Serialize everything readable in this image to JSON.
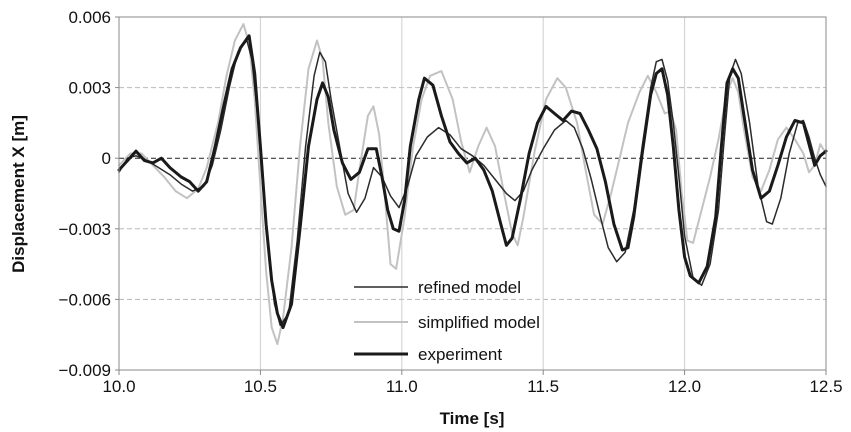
{
  "chart_data": {
    "type": "line",
    "title": "",
    "xlabel": "Time [s]",
    "ylabel": "Displacement X [m]",
    "xlim": [
      10.0,
      12.5
    ],
    "ylim": [
      -0.009,
      0.006
    ],
    "x_ticks": [
      10.0,
      10.5,
      11.0,
      11.5,
      12.0,
      12.5
    ],
    "x_tick_labels": [
      "10.0",
      "10.5",
      "11.0",
      "11.5",
      "12.0",
      "12.5"
    ],
    "y_ticks": [
      -0.009,
      -0.006,
      -0.003,
      0,
      0.003,
      0.006
    ],
    "y_tick_labels": [
      "−0.009",
      "−0.006",
      "−0.003",
      "0",
      "0.003",
      "0.006"
    ],
    "grid": {
      "horizontal": "dashed",
      "vertical": "solid"
    },
    "zero_line": "dashed-black",
    "legend_position": "bottom-center",
    "series": [
      {
        "name": "refined model",
        "color": "#2b2b2b",
        "line_width": 1.5,
        "points": [
          [
            10.0,
            -0.0006
          ],
          [
            10.03,
            0.0
          ],
          [
            10.06,
            0.0001
          ],
          [
            10.1,
            -0.0001
          ],
          [
            10.14,
            -0.0004
          ],
          [
            10.18,
            -0.0007
          ],
          [
            10.22,
            -0.0011
          ],
          [
            10.26,
            -0.0014
          ],
          [
            10.3,
            -0.0012
          ],
          [
            10.33,
            -0.0003
          ],
          [
            10.36,
            0.0012
          ],
          [
            10.39,
            0.003
          ],
          [
            10.42,
            0.0045
          ],
          [
            10.45,
            0.0051
          ],
          [
            10.47,
            0.0042
          ],
          [
            10.49,
            0.0018
          ],
          [
            10.51,
            -0.0014
          ],
          [
            10.53,
            -0.0042
          ],
          [
            10.55,
            -0.0062
          ],
          [
            10.57,
            -0.0071
          ],
          [
            10.6,
            -0.0066
          ],
          [
            10.63,
            -0.0035
          ],
          [
            10.66,
            0.0005
          ],
          [
            10.69,
            0.0035
          ],
          [
            10.71,
            0.0045
          ],
          [
            10.73,
            0.0041
          ],
          [
            10.75,
            0.0025
          ],
          [
            10.78,
            0.0005
          ],
          [
            10.81,
            -0.0015
          ],
          [
            10.84,
            -0.0023
          ],
          [
            10.87,
            -0.0017
          ],
          [
            10.9,
            -0.0004
          ],
          [
            10.93,
            -0.0008
          ],
          [
            10.96,
            -0.0016
          ],
          [
            10.99,
            -0.0021
          ],
          [
            11.02,
            -0.0012
          ],
          [
            11.05,
            0.0001
          ],
          [
            11.09,
            0.0009
          ],
          [
            11.13,
            0.0013
          ],
          [
            11.17,
            0.001
          ],
          [
            11.21,
            0.0004
          ],
          [
            11.25,
            0.0001
          ],
          [
            11.29,
            -0.0003
          ],
          [
            11.33,
            -0.0009
          ],
          [
            11.37,
            -0.0015
          ],
          [
            11.4,
            -0.0018
          ],
          [
            11.43,
            -0.0014
          ],
          [
            11.46,
            -0.0005
          ],
          [
            11.5,
            0.0004
          ],
          [
            11.54,
            0.0012
          ],
          [
            11.58,
            0.0016
          ],
          [
            11.61,
            0.0013
          ],
          [
            11.64,
            0.0004
          ],
          [
            11.67,
            -0.0009
          ],
          [
            11.7,
            -0.0024
          ],
          [
            11.73,
            -0.0038
          ],
          [
            11.76,
            -0.0044
          ],
          [
            11.79,
            -0.004
          ],
          [
            11.82,
            -0.0022
          ],
          [
            11.85,
            0.0005
          ],
          [
            11.88,
            0.003
          ],
          [
            11.9,
            0.0041
          ],
          [
            11.92,
            0.0042
          ],
          [
            11.94,
            0.0033
          ],
          [
            11.96,
            0.0015
          ],
          [
            11.98,
            -0.0008
          ],
          [
            12.0,
            -0.0033
          ],
          [
            12.03,
            -0.0051
          ],
          [
            12.06,
            -0.0054
          ],
          [
            12.09,
            -0.0045
          ],
          [
            12.12,
            -0.0022
          ],
          [
            12.14,
            0.0008
          ],
          [
            12.16,
            0.0035
          ],
          [
            12.18,
            0.0042
          ],
          [
            12.2,
            0.0036
          ],
          [
            12.23,
            0.0015
          ],
          [
            12.26,
            -0.0012
          ],
          [
            12.29,
            -0.0027
          ],
          [
            12.31,
            -0.0028
          ],
          [
            12.34,
            -0.0017
          ],
          [
            12.37,
            0.0002
          ],
          [
            12.4,
            0.0015
          ],
          [
            12.42,
            0.0016
          ],
          [
            12.44,
            0.0009
          ],
          [
            12.46,
            0.0
          ],
          [
            12.48,
            -0.0007
          ],
          [
            12.5,
            -0.0012
          ]
        ]
      },
      {
        "name": "simplified model",
        "color": "#c2c2c2",
        "line_width": 2,
        "points": [
          [
            10.0,
            -0.0003
          ],
          [
            10.04,
            0.0002
          ],
          [
            10.08,
            0.0002
          ],
          [
            10.12,
            -0.0003
          ],
          [
            10.16,
            -0.0008
          ],
          [
            10.2,
            -0.0014
          ],
          [
            10.24,
            -0.0017
          ],
          [
            10.28,
            -0.0013
          ],
          [
            10.31,
            -0.0004
          ],
          [
            10.35,
            0.0015
          ],
          [
            10.38,
            0.0035
          ],
          [
            10.41,
            0.005
          ],
          [
            10.44,
            0.0057
          ],
          [
            10.46,
            0.0049
          ],
          [
            10.48,
            0.0025
          ],
          [
            10.5,
            -0.0012
          ],
          [
            10.52,
            -0.0048
          ],
          [
            10.54,
            -0.0072
          ],
          [
            10.56,
            -0.0079
          ],
          [
            10.58,
            -0.0068
          ],
          [
            10.61,
            -0.0038
          ],
          [
            10.64,
            0.0005
          ],
          [
            10.67,
            0.0038
          ],
          [
            10.7,
            0.005
          ],
          [
            10.72,
            0.0042
          ],
          [
            10.74,
            0.0015
          ],
          [
            10.77,
            -0.0012
          ],
          [
            10.8,
            -0.0024
          ],
          [
            10.83,
            -0.0022
          ],
          [
            10.85,
            -0.0005
          ],
          [
            10.88,
            0.0018
          ],
          [
            10.9,
            0.0022
          ],
          [
            10.92,
            0.001
          ],
          [
            10.94,
            -0.0016
          ],
          [
            10.96,
            -0.0045
          ],
          [
            10.98,
            -0.0047
          ],
          [
            11.01,
            -0.0025
          ],
          [
            11.04,
            0.0005
          ],
          [
            11.07,
            0.0025
          ],
          [
            11.1,
            0.0035
          ],
          [
            11.14,
            0.0037
          ],
          [
            11.18,
            0.0025
          ],
          [
            11.21,
            0.0007
          ],
          [
            11.24,
            -0.0006
          ],
          [
            11.27,
            0.0005
          ],
          [
            11.3,
            0.0013
          ],
          [
            11.33,
            0.0005
          ],
          [
            11.36,
            -0.0014
          ],
          [
            11.39,
            -0.0032
          ],
          [
            11.41,
            -0.0037
          ],
          [
            11.43,
            -0.0025
          ],
          [
            11.47,
            0.0003
          ],
          [
            11.51,
            0.0025
          ],
          [
            11.55,
            0.0034
          ],
          [
            11.58,
            0.003
          ],
          [
            11.62,
            0.0015
          ],
          [
            11.65,
            -0.0005
          ],
          [
            11.68,
            -0.0024
          ],
          [
            11.71,
            -0.0028
          ],
          [
            11.74,
            -0.0015
          ],
          [
            11.77,
            0.0
          ],
          [
            11.8,
            0.0015
          ],
          [
            11.84,
            0.0028
          ],
          [
            11.87,
            0.0035
          ],
          [
            11.9,
            0.0028
          ],
          [
            11.93,
            0.0019
          ],
          [
            11.95,
            0.002
          ],
          [
            11.97,
            0.0012
          ],
          [
            11.99,
            -0.0015
          ],
          [
            12.01,
            -0.0035
          ],
          [
            12.03,
            -0.0036
          ],
          [
            12.06,
            -0.0022
          ],
          [
            12.09,
            -0.0008
          ],
          [
            12.12,
            0.0008
          ],
          [
            12.15,
            0.0028
          ],
          [
            12.17,
            0.0034
          ],
          [
            12.19,
            0.0028
          ],
          [
            12.21,
            0.0012
          ],
          [
            12.24,
            -0.0008
          ],
          [
            12.27,
            -0.0014
          ],
          [
            12.3,
            -0.0005
          ],
          [
            12.33,
            0.0008
          ],
          [
            12.36,
            0.0013
          ],
          [
            12.39,
            0.0008
          ],
          [
            12.42,
            0.0002
          ],
          [
            12.44,
            -0.0006
          ],
          [
            12.46,
            -0.0003
          ],
          [
            12.48,
            0.0006
          ],
          [
            12.5,
            0.0002
          ]
        ]
      },
      {
        "name": "experiment",
        "color": "#1a1a1a",
        "line_width": 3,
        "points": [
          [
            10.0,
            -0.0005
          ],
          [
            10.03,
            -0.0001
          ],
          [
            10.06,
            0.0003
          ],
          [
            10.09,
            -0.0001
          ],
          [
            10.12,
            -0.0002
          ],
          [
            10.15,
            0.0
          ],
          [
            10.18,
            -0.0004
          ],
          [
            10.22,
            -0.0008
          ],
          [
            10.25,
            -0.001
          ],
          [
            10.28,
            -0.0014
          ],
          [
            10.31,
            -0.001
          ],
          [
            10.34,
            0.0005
          ],
          [
            10.37,
            0.0022
          ],
          [
            10.4,
            0.0038
          ],
          [
            10.43,
            0.0047
          ],
          [
            10.46,
            0.0052
          ],
          [
            10.48,
            0.0036
          ],
          [
            10.5,
            0.0005
          ],
          [
            10.52,
            -0.0028
          ],
          [
            10.54,
            -0.0052
          ],
          [
            10.56,
            -0.0066
          ],
          [
            10.58,
            -0.0072
          ],
          [
            10.61,
            -0.0062
          ],
          [
            10.64,
            -0.003
          ],
          [
            10.67,
            0.0005
          ],
          [
            10.7,
            0.0025
          ],
          [
            10.72,
            0.0032
          ],
          [
            10.74,
            0.0026
          ],
          [
            10.76,
            0.0012
          ],
          [
            10.79,
            -0.0002
          ],
          [
            10.82,
            -0.0009
          ],
          [
            10.85,
            -0.0006
          ],
          [
            10.88,
            0.0004
          ],
          [
            10.91,
            0.0004
          ],
          [
            10.93,
            -0.0008
          ],
          [
            10.95,
            -0.0022
          ],
          [
            10.97,
            -0.003
          ],
          [
            10.99,
            -0.0031
          ],
          [
            11.01,
            -0.0018
          ],
          [
            11.03,
            0.0005
          ],
          [
            11.06,
            0.0025
          ],
          [
            11.08,
            0.0034
          ],
          [
            11.11,
            0.0031
          ],
          [
            11.14,
            0.0018
          ],
          [
            11.17,
            0.0007
          ],
          [
            11.2,
            0.0002
          ],
          [
            11.23,
            -0.0002
          ],
          [
            11.26,
            0.0
          ],
          [
            11.29,
            -0.0005
          ],
          [
            11.32,
            -0.0014
          ],
          [
            11.35,
            -0.0028
          ],
          [
            11.37,
            -0.0037
          ],
          [
            11.39,
            -0.0034
          ],
          [
            11.42,
            -0.0017
          ],
          [
            11.45,
            0.0002
          ],
          [
            11.48,
            0.0015
          ],
          [
            11.51,
            0.0022
          ],
          [
            11.54,
            0.0019
          ],
          [
            11.57,
            0.0016
          ],
          [
            11.6,
            0.002
          ],
          [
            11.63,
            0.0019
          ],
          [
            11.66,
            0.0012
          ],
          [
            11.69,
            0.0004
          ],
          [
            11.72,
            -0.001
          ],
          [
            11.75,
            -0.0028
          ],
          [
            11.78,
            -0.0039
          ],
          [
            11.8,
            -0.0038
          ],
          [
            11.82,
            -0.0025
          ],
          [
            11.85,
            0.0002
          ],
          [
            11.88,
            0.0027
          ],
          [
            11.9,
            0.0036
          ],
          [
            11.92,
            0.0038
          ],
          [
            11.94,
            0.0027
          ],
          [
            11.96,
            0.0005
          ],
          [
            11.98,
            -0.0022
          ],
          [
            12.0,
            -0.0042
          ],
          [
            12.02,
            -0.005
          ],
          [
            12.05,
            -0.0053
          ],
          [
            12.08,
            -0.0046
          ],
          [
            12.11,
            -0.0025
          ],
          [
            12.13,
            0.0005
          ],
          [
            12.15,
            0.0032
          ],
          [
            12.17,
            0.0038
          ],
          [
            12.19,
            0.0034
          ],
          [
            12.21,
            0.0018
          ],
          [
            12.24,
            -0.0005
          ],
          [
            12.27,
            -0.0017
          ],
          [
            12.3,
            -0.0014
          ],
          [
            12.33,
            -0.0003
          ],
          [
            12.36,
            0.0009
          ],
          [
            12.39,
            0.0016
          ],
          [
            12.42,
            0.0015
          ],
          [
            12.44,
            0.0006
          ],
          [
            12.46,
            -0.0003
          ],
          [
            12.48,
            0.0001
          ],
          [
            12.5,
            0.0003
          ]
        ]
      }
    ]
  }
}
